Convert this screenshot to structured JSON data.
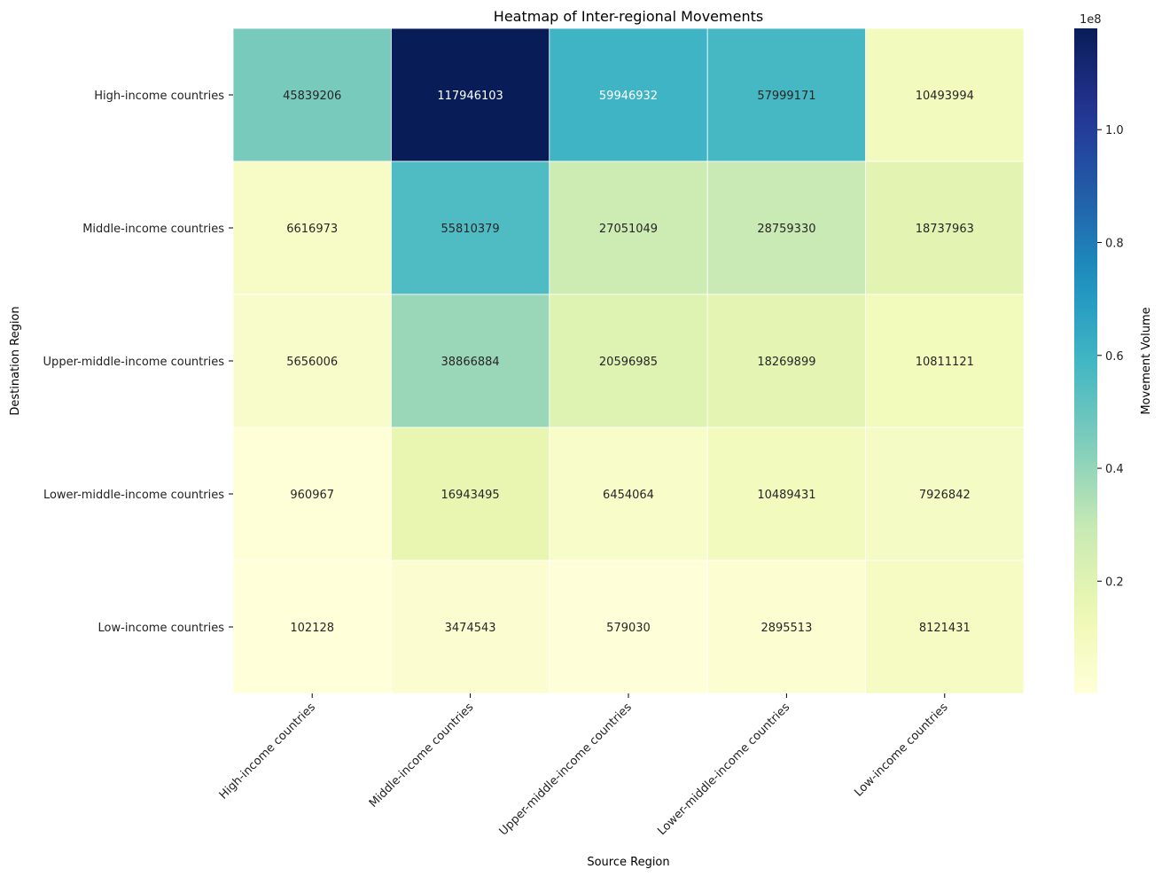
{
  "chart_data": {
    "type": "heatmap",
    "title": "Heatmap of Inter-regional Movements",
    "xlabel": "Source Region",
    "ylabel": "Destination Region",
    "x_categories": [
      "High-income countries",
      "Middle-income countries",
      "Upper-middle-income countries",
      "Lower-middle-income countries",
      "Low-income countries"
    ],
    "y_categories": [
      "High-income countries",
      "Middle-income countries",
      "Upper-middle-income countries",
      "Lower-middle-income countries",
      "Low-income countries"
    ],
    "values": [
      [
        45839206,
        117946103,
        59946932,
        57999171,
        10493994
      ],
      [
        6616973,
        55810379,
        27051049,
        28759330,
        18737963
      ],
      [
        5656006,
        38866884,
        20596985,
        18269899,
        10811121
      ],
      [
        960967,
        16943495,
        6454064,
        10489431,
        7926842
      ],
      [
        102128,
        3474543,
        579030,
        2895513,
        8121431
      ]
    ],
    "colorbar": {
      "label": "Movement Volume",
      "scale_label": "1e8",
      "ticks": [
        0.2,
        0.4,
        0.6,
        0.8,
        1.0
      ],
      "tick_labels": [
        "0.2",
        "0.4",
        "0.6",
        "0.8",
        "1.0"
      ],
      "range": [
        102128,
        117946103
      ],
      "colormap": "YlGnBu"
    }
  }
}
